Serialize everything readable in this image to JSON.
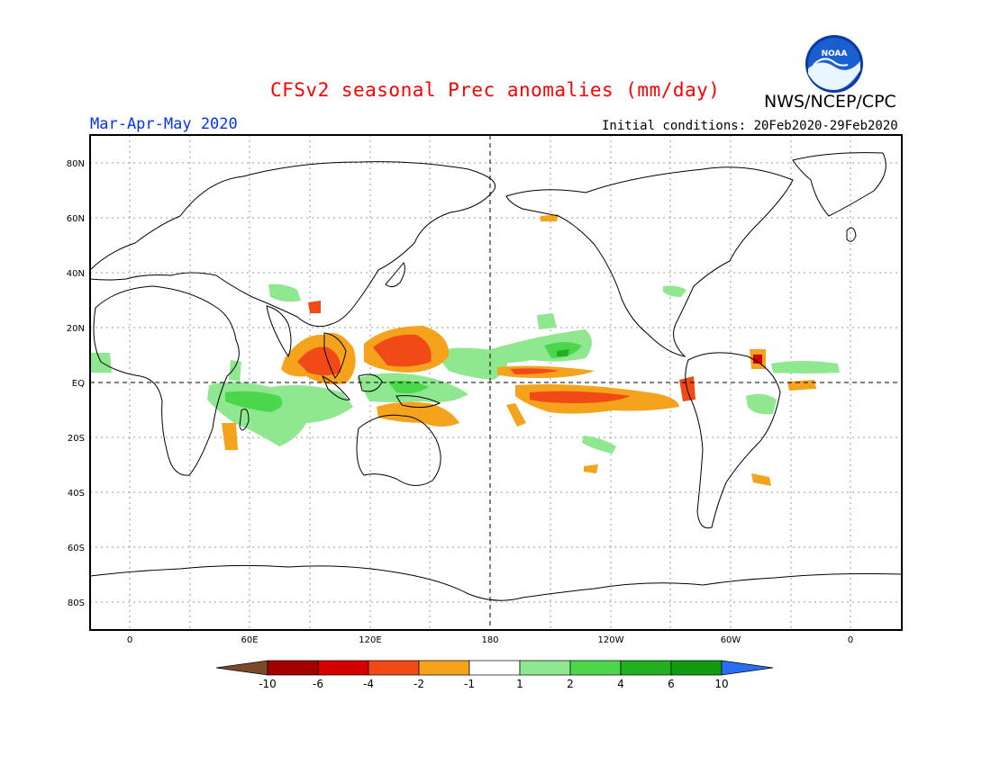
{
  "header": {
    "title": "CFSv2 seasonal Prec anomalies (mm/day)",
    "org": "NWS/NCEP/CPC",
    "period": "Mar-Apr-May 2020",
    "initial_conditions": "Initial conditions: 20Feb2020-29Feb2020",
    "logo_text": "NOAA"
  },
  "map": {
    "lat_labels": [
      "80N",
      "60N",
      "40N",
      "20N",
      "EQ",
      "20S",
      "40S",
      "60S",
      "80S"
    ],
    "lon_labels": [
      "0",
      "60E",
      "120E",
      "180",
      "120W",
      "60W",
      "0"
    ]
  },
  "colorbar": {
    "labels": [
      "-10",
      "-6",
      "-4",
      "-2",
      "-1",
      "1",
      "2",
      "4",
      "6",
      "10"
    ],
    "colors": [
      "#7a4a2a",
      "#a50000",
      "#d40000",
      "#f24a17",
      "#f5a31c",
      "#ffffff",
      "#8fe88f",
      "#4cd64c",
      "#22b022",
      "#119911",
      "#2a6ef5"
    ]
  }
}
